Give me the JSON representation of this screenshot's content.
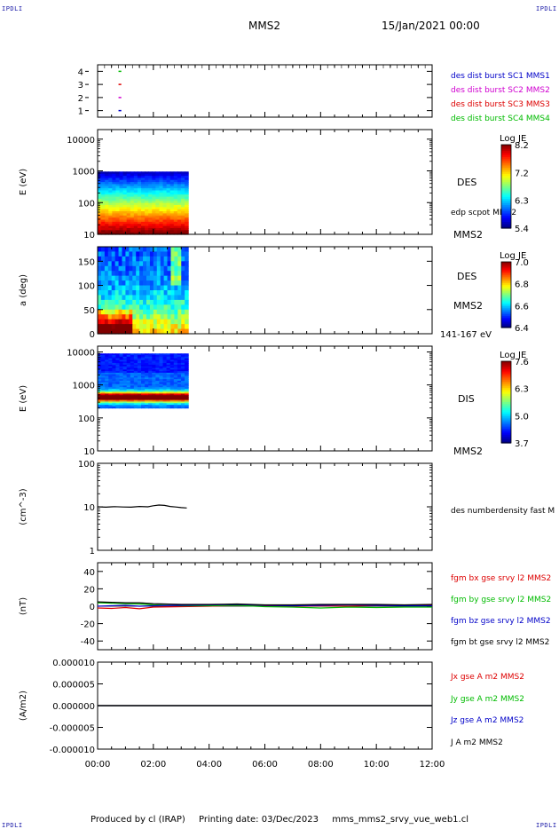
{
  "corner_mark": "IPDLI",
  "header": {
    "spacecraft": "MMS2",
    "date": "15/Jan/2021 00:00"
  },
  "footer": {
    "producer": "Produced by cl (IRAP)",
    "printing": "Printing date: 03/Dec/2023",
    "file": "mms_mms2_srvy_vue_web1.cl"
  },
  "time_axis": {
    "range_hours": [
      0,
      12
    ],
    "ticks": [
      "00:00",
      "02:00",
      "04:00",
      "06:00",
      "08:00",
      "10:00",
      "12:00"
    ]
  },
  "colors": {
    "c1": "#0000c8",
    "c2": "#d000d0",
    "c3": "#dd0000",
    "c4": "#00bb00",
    "bt": "#000000"
  },
  "chart_data": [
    {
      "type": "scatter",
      "panel": "burst-availability",
      "ylim": [
        0.5,
        4.5
      ],
      "yticks": [
        "1",
        "2",
        "3",
        "4"
      ],
      "series": [
        {
          "name": "des dist burst SC1 MMS1",
          "y": 1,
          "x_hours": [
            0.75,
            0.85
          ],
          "color": "#0000c8"
        },
        {
          "name": "des dist burst SC2 MMS2",
          "y": 2,
          "x_hours": [
            0.75,
            0.85
          ],
          "color": "#d000d0"
        },
        {
          "name": "des dist burst SC3 MMS3",
          "y": 3,
          "x_hours": [
            0.75,
            0.85
          ],
          "color": "#dd0000"
        },
        {
          "name": "des dist burst SC4 MMS4",
          "y": 4,
          "x_hours": [
            0.75,
            0.85
          ],
          "color": "#00bb00"
        }
      ]
    },
    {
      "type": "heatmap",
      "panel": "des-energy",
      "ylabel": "E (eV)",
      "yscale": "log",
      "ylim": [
        10,
        20000
      ],
      "yticks": [
        "10",
        "100",
        "1000",
        "10000"
      ],
      "x_range_hours": [
        0,
        3.25
      ],
      "y_range": [
        10,
        950
      ],
      "right_labels": [
        "DES",
        "edp scpot MMS2",
        "MMS2"
      ],
      "colorbar": {
        "title": "Log JE",
        "min": 5.4,
        "max": 8.2,
        "ticks": [
          "8.2",
          "7.2",
          "6.3",
          "5.4"
        ]
      }
    },
    {
      "type": "heatmap",
      "panel": "des-pitch-angle",
      "ylabel": "a (deg)",
      "ylim": [
        0,
        180
      ],
      "yticks": [
        "0",
        "50",
        "100",
        "150"
      ],
      "x_range_hours": [
        0,
        3.25
      ],
      "right_labels": [
        "DES",
        "MMS2",
        "141-167 eV"
      ],
      "colorbar": {
        "title": "Log JE",
        "min": 6.4,
        "max": 7.0,
        "ticks": [
          "7.0",
          "6.8",
          "6.6",
          "6.4"
        ]
      }
    },
    {
      "type": "heatmap",
      "panel": "dis-energy",
      "ylabel": "E (eV)",
      "yscale": "log",
      "ylim": [
        10,
        15000
      ],
      "yticks": [
        "10",
        "100",
        "1000",
        "10000"
      ],
      "x_range_hours": [
        0,
        3.25
      ],
      "y_range": [
        200,
        9000
      ],
      "right_labels": [
        "DIS",
        "MMS2"
      ],
      "colorbar": {
        "title": "Log JE",
        "min": 3.7,
        "max": 7.6,
        "ticks": [
          "7.6",
          "6.3",
          "5.0",
          "3.7"
        ]
      }
    },
    {
      "type": "line",
      "panel": "density",
      "ylabel": "(cm^-3)",
      "yscale": "log",
      "ylim": [
        1,
        100
      ],
      "yticks": [
        "1",
        "10",
        "100"
      ],
      "series": [
        {
          "name": "des numberdensity fast M",
          "color": "#000000",
          "x_hours": [
            0.0,
            0.3,
            0.6,
            0.9,
            1.2,
            1.5,
            1.8,
            2.0,
            2.2,
            2.4,
            2.6,
            2.8,
            3.0,
            3.2
          ],
          "y": [
            10.0,
            9.8,
            10.1,
            9.9,
            9.8,
            10.2,
            10.0,
            10.6,
            11.0,
            10.8,
            10.2,
            9.9,
            9.6,
            9.4
          ]
        }
      ]
    },
    {
      "type": "line",
      "panel": "magnetic-field",
      "ylabel": "(nT)",
      "ylim": [
        -50,
        50
      ],
      "yticks": [
        "-40",
        "-20",
        "0",
        "20",
        "40"
      ],
      "series": [
        {
          "name": "fgm bx gse srvy l2 MMS2",
          "color": "#dd0000",
          "x_hours": [
            0,
            0.5,
            1,
            1.5,
            2,
            3,
            4,
            5,
            6,
            7,
            8,
            9,
            10,
            11,
            12
          ],
          "y": [
            -2,
            -2.5,
            -1.5,
            -3,
            -1,
            -0.5,
            0,
            1,
            0.5,
            0,
            0.5,
            0,
            1,
            0.5,
            1
          ]
        },
        {
          "name": "fgm by gse srvy l2 MMS2",
          "color": "#00bb00",
          "x_hours": [
            0,
            0.5,
            1,
            1.5,
            2,
            3,
            4,
            5,
            6,
            7,
            8,
            9,
            10,
            11,
            12
          ],
          "y": [
            4,
            3.5,
            3,
            2.5,
            1.5,
            0.5,
            0.5,
            1,
            -0.5,
            -1,
            -2,
            -1,
            -1.5,
            -1,
            -1
          ]
        },
        {
          "name": "fgm bz gse srvy l2 MMS2",
          "color": "#0000c8",
          "x_hours": [
            0,
            0.5,
            1,
            1.5,
            2,
            3,
            4,
            5,
            6,
            7,
            8,
            9,
            10,
            11,
            12
          ],
          "y": [
            0,
            0.5,
            1,
            0,
            0.5,
            1,
            1.5,
            2,
            1,
            0.5,
            1,
            1.5,
            1,
            0.5,
            0.5
          ]
        },
        {
          "name": "fgm bt gse srvy l2 MMS2",
          "color": "#000000",
          "x_hours": [
            0,
            0.5,
            1,
            1.5,
            2,
            3,
            4,
            5,
            6,
            7,
            8,
            9,
            10,
            11,
            12
          ],
          "y": [
            5,
            4.5,
            4,
            4,
            3,
            2,
            2,
            2.5,
            1.5,
            1.5,
            2,
            2,
            2,
            1.5,
            2
          ]
        }
      ]
    },
    {
      "type": "line",
      "panel": "current-density",
      "ylabel": "(A/m2)",
      "ylim": [
        -1e-05,
        1e-05
      ],
      "yticks": [
        "-0.000010",
        "-0.000005",
        "0.000000",
        "0.000005",
        "0.000010"
      ],
      "series": [
        {
          "name": "Jx gse A m2 MMS2",
          "color": "#dd0000",
          "x_hours": [
            0,
            12
          ],
          "y": [
            0,
            0
          ]
        },
        {
          "name": "Jy gse A m2 MMS2",
          "color": "#00bb00",
          "x_hours": [
            0,
            12
          ],
          "y": [
            0,
            0
          ]
        },
        {
          "name": "Jz gse A m2 MMS2",
          "color": "#0000c8",
          "x_hours": [
            0,
            12
          ],
          "y": [
            0,
            0
          ]
        },
        {
          "name": "J A m2 MMS2",
          "color": "#000000",
          "x_hours": [
            0,
            12
          ],
          "y": [
            0,
            0
          ]
        }
      ]
    }
  ]
}
